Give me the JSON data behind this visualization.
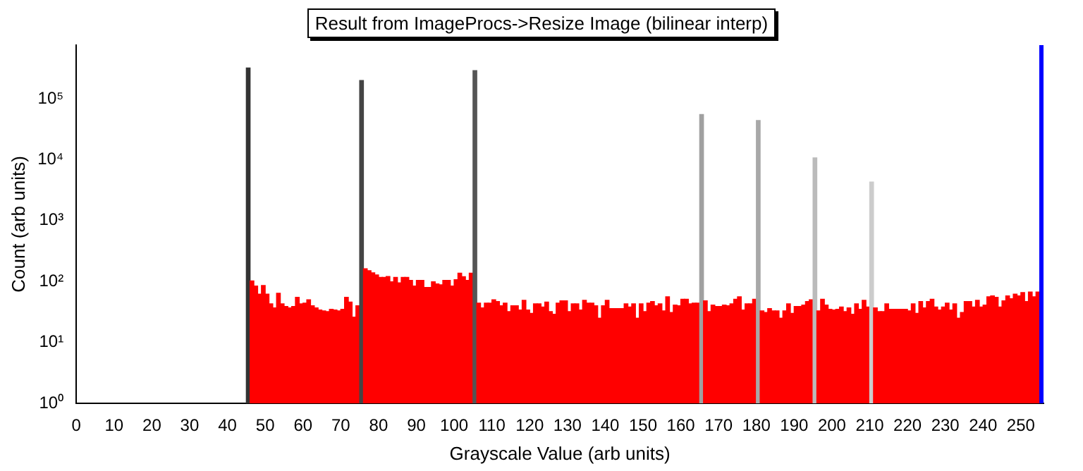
{
  "chart_data": {
    "type": "histogram",
    "title": "Result from ImageProcs->Resize Image (bilinear interp)",
    "xlabel": "Grayscale Value (arb units)",
    "ylabel": "Count (arb units)",
    "bins": [
      0,
      1,
      2,
      3,
      4,
      5,
      6,
      7,
      8,
      9,
      10,
      11,
      12,
      13,
      14,
      15,
      16,
      17,
      18,
      19,
      20,
      21,
      22,
      23,
      24,
      25,
      26,
      27,
      28,
      29,
      30,
      31,
      32,
      33,
      34,
      35,
      36,
      37,
      38,
      39,
      40,
      41,
      42,
      43,
      44,
      45,
      46,
      47,
      48,
      49,
      50,
      51,
      52,
      53,
      54,
      55,
      56,
      57,
      58,
      59,
      60,
      61,
      62,
      63,
      64,
      65,
      66,
      67,
      68,
      69,
      70,
      71,
      72,
      73,
      74,
      75,
      76,
      77,
      78,
      79,
      80,
      81,
      82,
      83,
      84,
      85,
      86,
      87,
      88,
      89,
      90,
      91,
      92,
      93,
      94,
      95,
      96,
      97,
      98,
      99,
      100,
      101,
      102,
      103,
      104,
      105,
      106,
      107,
      108,
      109,
      110,
      111,
      112,
      113,
      114,
      115,
      116,
      117,
      118,
      119,
      120,
      121,
      122,
      123,
      124,
      125,
      126,
      127,
      128,
      129,
      130,
      131,
      132,
      133,
      134,
      135,
      136,
      137,
      138,
      139,
      140,
      141,
      142,
      143,
      144,
      145,
      146,
      147,
      148,
      149,
      150,
      151,
      152,
      153,
      154,
      155,
      156,
      157,
      158,
      159,
      160,
      161,
      162,
      163,
      164,
      165,
      166,
      167,
      168,
      169,
      170,
      171,
      172,
      173,
      174,
      175,
      176,
      177,
      178,
      179,
      180,
      181,
      182,
      183,
      184,
      185,
      186,
      187,
      188,
      189,
      190,
      191,
      192,
      193,
      194,
      195,
      196,
      197,
      198,
      199,
      200,
      201,
      202,
      203,
      204,
      205,
      206,
      207,
      208,
      209,
      210,
      211,
      212,
      213,
      214,
      215,
      216,
      217,
      218,
      219,
      220,
      221,
      222,
      223,
      224,
      225,
      226,
      227,
      228,
      229,
      230,
      231,
      232,
      233,
      234,
      235,
      236,
      237,
      238,
      239,
      240,
      241,
      242,
      243,
      244,
      245,
      246,
      247,
      248,
      249,
      250,
      251,
      252,
      253,
      254,
      255,
      256
    ],
    "values": [
      null,
      null,
      null,
      null,
      null,
      null,
      null,
      null,
      null,
      null,
      null,
      null,
      null,
      null,
      null,
      null,
      null,
      null,
      null,
      null,
      null,
      null,
      null,
      null,
      null,
      null,
      null,
      null,
      null,
      null,
      null,
      null,
      null,
      null,
      null,
      null,
      null,
      null,
      null,
      null,
      null,
      null,
      null,
      null,
      null,
      320000,
      102,
      84,
      62,
      86,
      62,
      43,
      37,
      64,
      43,
      39,
      37,
      39,
      55,
      43,
      44,
      50,
      40,
      37,
      34,
      33,
      32,
      35,
      34,
      33,
      35,
      55,
      46,
      26,
      40,
      200000,
      162,
      150,
      139,
      128,
      117,
      117,
      121,
      99,
      117,
      95,
      117,
      117,
      104,
      84,
      104,
      104,
      80,
      80,
      99,
      91,
      88,
      104,
      104,
      84,
      107,
      137,
      120,
      104,
      137,
      290000,
      44,
      37,
      44,
      44,
      50,
      47,
      40,
      44,
      32,
      40,
      40,
      34,
      49,
      34,
      30,
      43,
      43,
      38,
      46,
      32,
      29,
      44,
      48,
      48,
      32,
      43,
      43,
      34,
      49,
      44,
      44,
      40,
      25,
      40,
      49,
      36,
      36,
      36,
      36,
      43,
      38,
      43,
      25,
      43,
      32,
      44,
      47,
      40,
      43,
      33,
      56,
      31,
      41,
      40,
      51,
      51,
      43,
      44,
      44,
      55000,
      48,
      32,
      41,
      39,
      39,
      41,
      40,
      43,
      51,
      56,
      34,
      43,
      43,
      51,
      44000,
      33,
      31,
      36,
      33,
      33,
      25,
      33,
      43,
      30,
      39,
      39,
      41,
      47,
      50,
      10700,
      33,
      51,
      41,
      35,
      34,
      35,
      38,
      32,
      37,
      29,
      43,
      35,
      49,
      38,
      4300,
      37,
      32,
      32,
      43,
      35,
      35,
      35,
      35,
      35,
      33,
      43,
      30,
      47,
      37,
      47,
      51,
      38,
      34,
      38,
      44,
      34,
      43,
      25,
      31,
      47,
      47,
      38,
      49,
      38,
      41,
      56,
      58,
      55,
      38,
      48,
      58,
      52,
      62,
      58,
      66,
      47,
      67,
      56,
      67,
      750000
    ],
    "colors": [
      "#ff0000",
      "#ff0000",
      "#ff0000",
      "#ff0000",
      "#ff0000",
      "#ff0000",
      "#ff0000",
      "#ff0000",
      "#ff0000",
      "#ff0000",
      "#ff0000",
      "#ff0000",
      "#ff0000",
      "#ff0000",
      "#ff0000",
      "#ff0000",
      "#ff0000",
      "#ff0000",
      "#ff0000",
      "#ff0000",
      "#ff0000",
      "#ff0000",
      "#ff0000",
      "#ff0000",
      "#ff0000",
      "#ff0000",
      "#ff0000",
      "#ff0000",
      "#ff0000",
      "#ff0000",
      "#ff0000",
      "#ff0000",
      "#ff0000",
      "#ff0000",
      "#ff0000",
      "#ff0000",
      "#ff0000",
      "#ff0000",
      "#ff0000",
      "#ff0000",
      "#ff0000",
      "#ff0000",
      "#ff0000",
      "#ff0000",
      "#ff0000",
      "#333333",
      "#ff0000",
      "#ff0000",
      "#ff0000",
      "#ff0000",
      "#ff0000",
      "#ff0000",
      "#ff0000",
      "#ff0000",
      "#ff0000",
      "#ff0000",
      "#ff0000",
      "#ff0000",
      "#ff0000",
      "#ff0000",
      "#ff0000",
      "#ff0000",
      "#ff0000",
      "#ff0000",
      "#ff0000",
      "#ff0000",
      "#ff0000",
      "#ff0000",
      "#ff0000",
      "#ff0000",
      "#ff0000",
      "#ff0000",
      "#ff0000",
      "#ff0000",
      "#ff0000",
      "#444444",
      "#ff0000",
      "#ff0000",
      "#ff0000",
      "#ff0000",
      "#ff0000",
      "#ff0000",
      "#ff0000",
      "#ff0000",
      "#ff0000",
      "#ff0000",
      "#ff0000",
      "#ff0000",
      "#ff0000",
      "#ff0000",
      "#ff0000",
      "#ff0000",
      "#ff0000",
      "#ff0000",
      "#ff0000",
      "#ff0000",
      "#ff0000",
      "#ff0000",
      "#ff0000",
      "#ff0000",
      "#ff0000",
      "#ff0000",
      "#ff0000",
      "#ff0000",
      "#ff0000",
      "#555555",
      "#ff0000",
      "#ff0000",
      "#ff0000",
      "#ff0000",
      "#ff0000",
      "#ff0000",
      "#ff0000",
      "#ff0000",
      "#ff0000",
      "#ff0000",
      "#ff0000",
      "#ff0000",
      "#ff0000",
      "#ff0000",
      "#ff0000",
      "#ff0000",
      "#ff0000",
      "#ff0000",
      "#ff0000",
      "#ff0000",
      "#ff0000",
      "#ff0000",
      "#ff0000",
      "#ff0000",
      "#ff0000",
      "#ff0000",
      "#ff0000",
      "#ff0000",
      "#ff0000",
      "#ff0000",
      "#ff0000",
      "#ff0000",
      "#ff0000",
      "#ff0000",
      "#ff0000",
      "#ff0000",
      "#ff0000",
      "#ff0000",
      "#ff0000",
      "#ff0000",
      "#ff0000",
      "#ff0000",
      "#ff0000",
      "#ff0000",
      "#ff0000",
      "#ff0000",
      "#ff0000",
      "#ff0000",
      "#ff0000",
      "#ff0000",
      "#ff0000",
      "#ff0000",
      "#ff0000",
      "#ff0000",
      "#ff0000",
      "#ff0000",
      "#ff0000",
      "#ff0000",
      "#ff0000",
      "#a0a0a0",
      "#ff0000",
      "#ff0000",
      "#ff0000",
      "#ff0000",
      "#ff0000",
      "#ff0000",
      "#ff0000",
      "#ff0000",
      "#ff0000",
      "#ff0000",
      "#ff0000",
      "#ff0000",
      "#ff0000",
      "#ff0000",
      "#a8a8a8",
      "#ff0000",
      "#ff0000",
      "#ff0000",
      "#ff0000",
      "#ff0000",
      "#ff0000",
      "#ff0000",
      "#ff0000",
      "#ff0000",
      "#ff0000",
      "#ff0000",
      "#ff0000",
      "#ff0000",
      "#ff0000",
      "#bbbbbb",
      "#ff0000",
      "#ff0000",
      "#ff0000",
      "#ff0000",
      "#ff0000",
      "#ff0000",
      "#ff0000",
      "#ff0000",
      "#ff0000",
      "#ff0000",
      "#ff0000",
      "#ff0000",
      "#ff0000",
      "#ff0000",
      "#cccccc",
      "#ff0000",
      "#ff0000",
      "#ff0000",
      "#ff0000",
      "#ff0000",
      "#ff0000",
      "#ff0000",
      "#ff0000",
      "#ff0000",
      "#ff0000",
      "#ff0000",
      "#ff0000",
      "#ff0000",
      "#ff0000",
      "#ff0000",
      "#ff0000",
      "#ff0000",
      "#ff0000",
      "#ff0000",
      "#ff0000",
      "#ff0000",
      "#ff0000",
      "#ff0000",
      "#ff0000",
      "#ff0000",
      "#ff0000",
      "#ff0000",
      "#ff0000",
      "#ff0000",
      "#ff0000",
      "#ff0000",
      "#ff0000",
      "#ff0000",
      "#ff0000",
      "#ff0000",
      "#ff0000",
      "#ff0000",
      "#ff0000",
      "#ff0000",
      "#ff0000",
      "#ff0000",
      "#ff0000",
      "#ff0000",
      "#ff0000",
      "#0000ff"
    ],
    "log": "y",
    "xlim": [
      0,
      256
    ],
    "ylim": [
      1,
      760000
    ],
    "xticks": [
      0,
      10,
      20,
      30,
      40,
      50,
      60,
      70,
      80,
      90,
      100,
      110,
      120,
      130,
      140,
      150,
      160,
      170,
      180,
      190,
      200,
      210,
      220,
      230,
      240,
      250
    ],
    "yticks": [
      {
        "value": 1,
        "label": "10⁰"
      },
      {
        "value": 10,
        "label": "10¹"
      },
      {
        "value": 100,
        "label": "10²"
      },
      {
        "value": 1000,
        "label": "10³"
      },
      {
        "value": 10000,
        "label": "10⁴"
      },
      {
        "value": 100000,
        "label": "10⁵"
      }
    ],
    "grid": false,
    "legend": false
  }
}
